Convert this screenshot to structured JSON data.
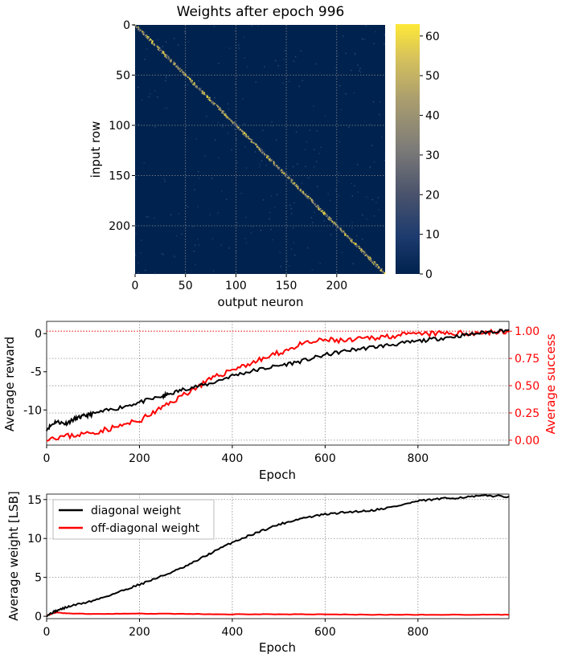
{
  "chart_data": [
    {
      "type": "heatmap",
      "title": "Weights after epoch 996",
      "xlabel": "output neuron",
      "ylabel": "input row",
      "x_ticks": [
        "0",
        "50",
        "100",
        "150",
        "200"
      ],
      "y_ticks": [
        "0",
        "50",
        "100",
        "150",
        "200"
      ],
      "xlim": [
        0,
        248
      ],
      "ylim": [
        0,
        248
      ],
      "colorbar": {
        "min": 0,
        "max": 63,
        "ticks": [
          "0",
          "10",
          "20",
          "30",
          "40",
          "50",
          "60"
        ],
        "colormap": "cividis"
      },
      "pattern": "strong diagonal (weights up to ~60) on near-zero background",
      "colors": {
        "low": "#00224e",
        "mid": "#7c7b78",
        "high": "#fee838"
      }
    },
    {
      "type": "line",
      "xlabel": "Epoch",
      "ylabel": "Average reward",
      "y2label": "Average success",
      "xlim": [
        0,
        996
      ],
      "ylim": [
        -14.6,
        1.6
      ],
      "y2lim": [
        -0.045,
        1.09
      ],
      "x_ticks": [
        "0",
        "200",
        "400",
        "600",
        "800"
      ],
      "y_ticks": [
        "0",
        "-5",
        "-10"
      ],
      "y2_ticks": [
        "1.00",
        "0.75",
        "0.50",
        "0.25",
        "0.00"
      ],
      "reference_line_y2": 1.0,
      "series": [
        {
          "axis": "left",
          "color": "#000000",
          "x": [
            0,
            20,
            40,
            60,
            80,
            100,
            150,
            200,
            250,
            260,
            300,
            350,
            400,
            450,
            500,
            550,
            600,
            650,
            700,
            750,
            800,
            850,
            900,
            950,
            996
          ],
          "values": [
            -12.5,
            -11.5,
            -11.8,
            -11.2,
            -10.8,
            -10.5,
            -9.8,
            -9.0,
            -8.2,
            -8.0,
            -7.2,
            -6.6,
            -5.5,
            -4.8,
            -4.2,
            -3.6,
            -2.8,
            -2.2,
            -1.8,
            -1.4,
            -1.0,
            -0.6,
            -0.2,
            0.2,
            0.5
          ]
        },
        {
          "axis": "right",
          "color": "#ff0000",
          "x": [
            0,
            50,
            100,
            150,
            200,
            250,
            300,
            350,
            400,
            450,
            500,
            550,
            600,
            650,
            700,
            750,
            800,
            850,
            900,
            950,
            996
          ],
          "values": [
            0.02,
            0.04,
            0.07,
            0.12,
            0.18,
            0.3,
            0.43,
            0.55,
            0.65,
            0.72,
            0.8,
            0.88,
            0.92,
            0.91,
            0.94,
            0.96,
            0.97,
            0.98,
            0.98,
            0.99,
            0.99
          ]
        }
      ]
    },
    {
      "type": "line",
      "xlabel": "Epoch",
      "ylabel": "Average weight [LSB]",
      "xlim": [
        0,
        996
      ],
      "ylim": [
        -0.3,
        15.7
      ],
      "x_ticks": [
        "0",
        "200",
        "400",
        "600",
        "800"
      ],
      "y_ticks": [
        "15",
        "10",
        "5",
        "0"
      ],
      "legend": "top-left",
      "series": [
        {
          "name": "diagonal weight",
          "color": "#000000",
          "x": [
            0,
            20,
            50,
            100,
            150,
            200,
            250,
            300,
            350,
            400,
            450,
            500,
            550,
            600,
            650,
            700,
            750,
            800,
            850,
            900,
            950,
            996
          ],
          "values": [
            0.1,
            0.7,
            1.3,
            2.0,
            3.0,
            4.1,
            5.2,
            6.4,
            8.0,
            9.5,
            10.7,
            11.8,
            12.6,
            13.1,
            13.4,
            13.6,
            14.1,
            14.8,
            15.1,
            15.3,
            15.5,
            15.4
          ]
        },
        {
          "name": "off-diagonal weight",
          "color": "#ff0000",
          "x": [
            0,
            20,
            50,
            100,
            200,
            300,
            400,
            500,
            600,
            700,
            800,
            900,
            996
          ],
          "values": [
            0.1,
            0.5,
            0.35,
            0.3,
            0.35,
            0.3,
            0.25,
            0.25,
            0.25,
            0.2,
            0.2,
            0.2,
            0.2
          ]
        }
      ]
    }
  ]
}
